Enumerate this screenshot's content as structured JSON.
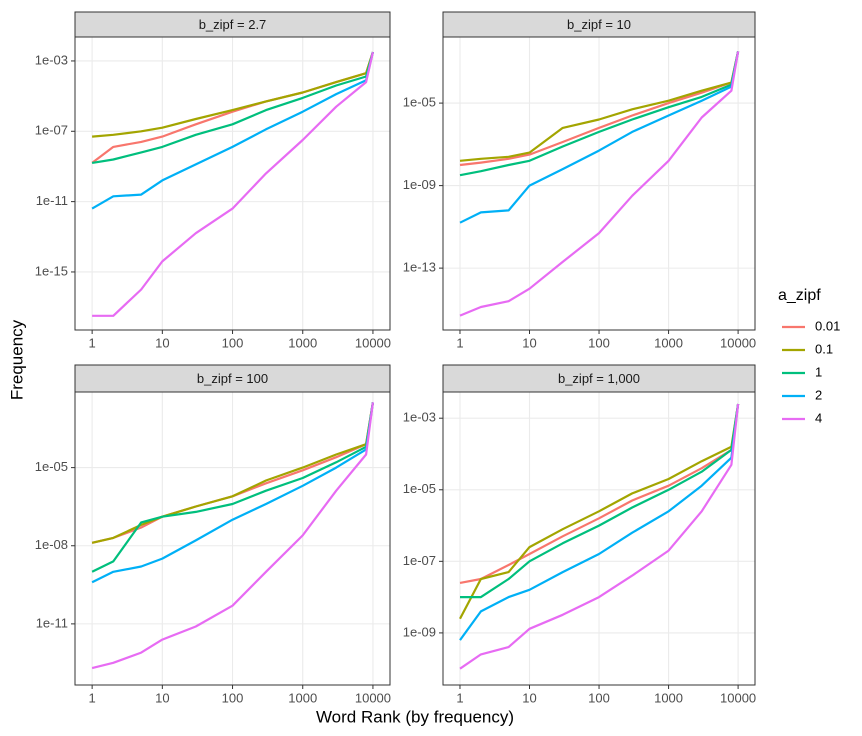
{
  "xlabel": "Word Rank (by frequency)",
  "ylabel": "Frequency",
  "legend_title": "a_zipf",
  "chart_data": [
    {
      "type": "line",
      "title": "b_zipf = 2.7",
      "log_x": true,
      "log_y": true,
      "grid": true,
      "x": [
        1,
        2,
        5,
        10,
        30,
        100,
        300,
        1000,
        3000,
        8000,
        10000
      ],
      "xlim": [
        0.57,
        17500
      ],
      "xticks": [
        1,
        10,
        100,
        1000,
        10000
      ],
      "ylim": [
        5e-19,
        0.023
      ],
      "yticks": [
        {
          "value": 0.001,
          "label": "1e-03"
        },
        {
          "value": 1e-07,
          "label": "1e-07"
        },
        {
          "value": 1e-11,
          "label": "1e-11"
        },
        {
          "value": 1e-15,
          "label": "1e-15"
        }
      ],
      "series": [
        {
          "name": "0.01",
          "color": "#F8766D",
          "values": [
            1.6e-09,
            1.3e-08,
            2.5e-08,
            5e-08,
            2.5e-07,
            1.3e-06,
            5e-06,
            1.6e-05,
            6.3e-05,
            0.0002,
            0.0032
          ]
        },
        {
          "name": "0.1",
          "color": "#A3A500",
          "values": [
            5e-08,
            6.3e-08,
            1e-07,
            1.6e-07,
            5e-07,
            1.6e-06,
            5e-06,
            1.6e-05,
            6.3e-05,
            0.0002,
            0.0032
          ]
        },
        {
          "name": "1",
          "color": "#00BF7D",
          "values": [
            1.6e-09,
            2.5e-09,
            6.3e-09,
            1.3e-08,
            6.3e-08,
            2.5e-07,
            1.6e-06,
            7.9e-06,
            4e-05,
            0.00013,
            0.0032
          ]
        },
        {
          "name": "2",
          "color": "#00B0F6",
          "values": [
            4e-12,
            2e-11,
            2.5e-11,
            1.6e-10,
            1.3e-09,
            1.3e-08,
            1.3e-07,
            1.3e-06,
            1.3e-05,
            7.9e-05,
            0.0032
          ]
        },
        {
          "name": "4",
          "color": "#E76BF3",
          "values": [
            3.2e-18,
            3.2e-18,
            1e-16,
            4e-15,
            1.6e-13,
            4e-12,
            4e-10,
            3.2e-08,
            2.5e-06,
            6.3e-05,
            0.0032
          ]
        }
      ]
    },
    {
      "type": "line",
      "title": "b_zipf = 10",
      "log_x": true,
      "log_y": true,
      "grid": true,
      "x": [
        1,
        2,
        5,
        10,
        30,
        100,
        300,
        1000,
        3000,
        8000,
        10000
      ],
      "xlim": [
        0.57,
        17500
      ],
      "xticks": [
        1,
        10,
        100,
        1000,
        10000
      ],
      "ylim": [
        1e-16,
        0.016
      ],
      "yticks": [
        {
          "value": 1e-05,
          "label": "1e-05"
        },
        {
          "value": 1e-09,
          "label": "1e-09"
        },
        {
          "value": 1e-13,
          "label": "1e-13"
        }
      ],
      "series": [
        {
          "name": "0.01",
          "color": "#F8766D",
          "values": [
            1e-08,
            1.3e-08,
            2e-08,
            3.2e-08,
            1.3e-07,
            6.3e-07,
            2.5e-06,
            1e-05,
            3.2e-05,
            0.0001,
            0.0032
          ]
        },
        {
          "name": "0.1",
          "color": "#A3A500",
          "values": [
            1.6e-08,
            2e-08,
            2.5e-08,
            4e-08,
            6.3e-07,
            1.6e-06,
            5e-06,
            1.3e-05,
            4e-05,
            0.0001,
            0.0032
          ]
        },
        {
          "name": "1",
          "color": "#00BF7D",
          "values": [
            3.2e-09,
            5e-09,
            1e-08,
            1.6e-08,
            7.9e-08,
            4e-07,
            1.6e-06,
            6.3e-06,
            2e-05,
            7.9e-05,
            0.0032
          ]
        },
        {
          "name": "2",
          "color": "#00B0F6",
          "values": [
            1.6e-11,
            5e-11,
            6.3e-11,
            1e-09,
            6.3e-09,
            5e-08,
            4e-07,
            2.5e-06,
            1.3e-05,
            6.3e-05,
            0.0032
          ]
        },
        {
          "name": "4",
          "color": "#E76BF3",
          "values": [
            5e-16,
            1.3e-15,
            2.5e-15,
            1e-14,
            2e-13,
            5e-12,
            3.2e-10,
            1.6e-08,
            2e-06,
            4e-05,
            0.0032
          ]
        }
      ]
    },
    {
      "type": "line",
      "title": "b_zipf = 100",
      "log_x": true,
      "log_y": true,
      "grid": true,
      "x": [
        1,
        2,
        5,
        10,
        30,
        100,
        300,
        1000,
        3000,
        8000,
        10000
      ],
      "xlim": [
        0.57,
        17500
      ],
      "xticks": [
        1,
        10,
        100,
        1000,
        10000
      ],
      "ylim": [
        4.5e-14,
        0.008
      ],
      "yticks": [
        {
          "value": 1e-05,
          "label": "1e-05"
        },
        {
          "value": 1e-08,
          "label": "1e-08"
        },
        {
          "value": 1e-11,
          "label": "1e-11"
        }
      ],
      "series": [
        {
          "name": "0.01",
          "color": "#F8766D",
          "values": [
            1.3e-08,
            2e-08,
            5e-08,
            1.3e-07,
            3.2e-07,
            7.9e-07,
            2.5e-06,
            7.9e-06,
            2.5e-05,
            7.9e-05,
            0.0032
          ]
        },
        {
          "name": "0.1",
          "color": "#A3A500",
          "values": [
            1.3e-08,
            2e-08,
            6.3e-08,
            1.3e-07,
            3.2e-07,
            7.9e-07,
            3.2e-06,
            1e-05,
            3.2e-05,
            7.9e-05,
            0.0032
          ]
        },
        {
          "name": "1",
          "color": "#00BF7D",
          "values": [
            1e-09,
            2.5e-09,
            7.9e-08,
            1.3e-07,
            2e-07,
            4e-07,
            1.3e-06,
            4e-06,
            1.6e-05,
            6.3e-05,
            0.0032
          ]
        },
        {
          "name": "2",
          "color": "#00B0F6",
          "values": [
            4e-10,
            1e-09,
            1.6e-09,
            3.2e-09,
            1.6e-08,
            1e-07,
            4e-07,
            2e-06,
            1e-05,
            5e-05,
            0.0032
          ]
        },
        {
          "name": "4",
          "color": "#E76BF3",
          "values": [
            2e-13,
            3.2e-13,
            7.9e-13,
            2.5e-12,
            7.9e-12,
            5e-11,
            1e-09,
            2.5e-08,
            1.3e-06,
            3.2e-05,
            0.0032
          ]
        }
      ]
    },
    {
      "type": "line",
      "title": "b_zipf = 1,000",
      "log_x": true,
      "log_y": true,
      "grid": true,
      "x": [
        1,
        2,
        5,
        10,
        30,
        100,
        300,
        1000,
        3000,
        8000,
        10000
      ],
      "xlim": [
        0.57,
        17500
      ],
      "xticks": [
        1,
        10,
        100,
        1000,
        10000
      ],
      "ylim": [
        3.5e-11,
        0.0054
      ],
      "yticks": [
        {
          "value": 0.001,
          "label": "1e-03"
        },
        {
          "value": 1e-05,
          "label": "1e-05"
        },
        {
          "value": 1e-07,
          "label": "1e-07"
        },
        {
          "value": 1e-09,
          "label": "1e-09"
        }
      ],
      "series": [
        {
          "name": "0.01",
          "color": "#F8766D",
          "values": [
            2.5e-08,
            3.2e-08,
            7.9e-08,
            1.6e-07,
            5e-07,
            1.6e-06,
            5e-06,
            1.3e-05,
            4e-05,
            0.00013,
            0.0025
          ]
        },
        {
          "name": "0.1",
          "color": "#A3A500",
          "values": [
            2.5e-09,
            3.2e-08,
            5e-08,
            2.5e-07,
            7.9e-07,
            2.5e-06,
            7.9e-06,
            2e-05,
            6.3e-05,
            0.00016,
            0.0025
          ]
        },
        {
          "name": "1",
          "color": "#00BF7D",
          "values": [
            1e-08,
            1e-08,
            3.2e-08,
            1e-07,
            3.2e-07,
            1e-06,
            3.2e-06,
            1e-05,
            3.2e-05,
            0.00013,
            0.0025
          ]
        },
        {
          "name": "2",
          "color": "#00B0F6",
          "values": [
            6.3e-10,
            4e-09,
            1e-08,
            1.6e-08,
            5e-08,
            1.6e-07,
            6.3e-07,
            2.5e-06,
            1.3e-05,
            7.9e-05,
            0.0025
          ]
        },
        {
          "name": "4",
          "color": "#E76BF3",
          "values": [
            1e-10,
            2.5e-10,
            4e-10,
            1.3e-09,
            3.2e-09,
            1e-08,
            4e-08,
            2e-07,
            2.5e-06,
            5e-05,
            0.0025
          ]
        }
      ]
    }
  ]
}
